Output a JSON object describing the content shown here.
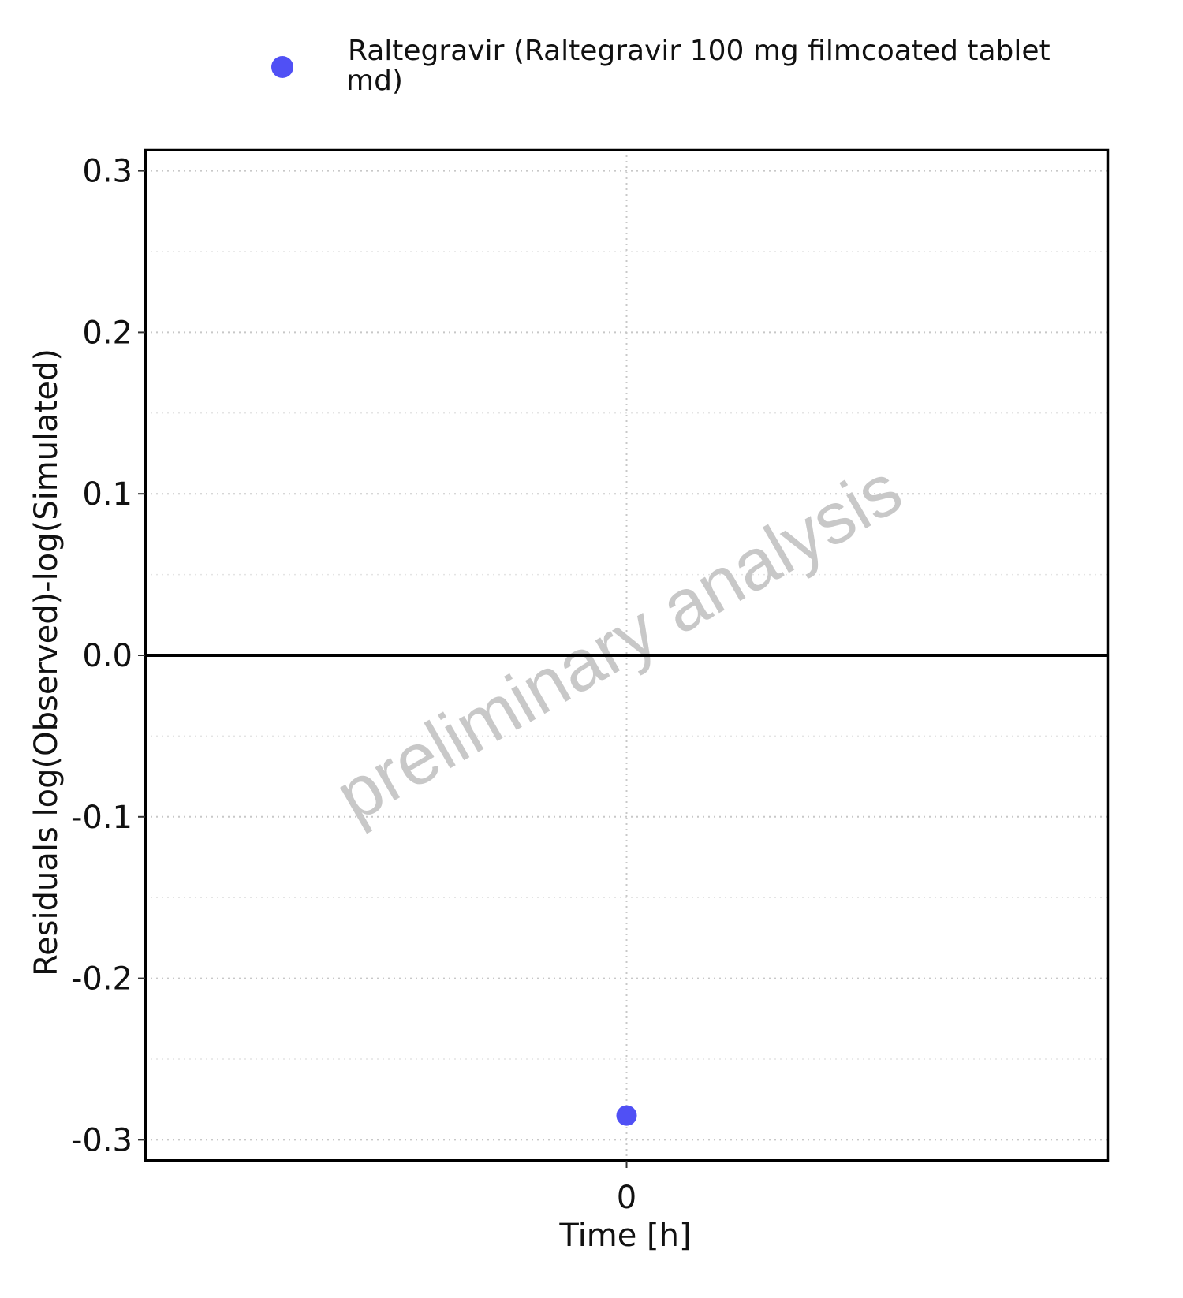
{
  "chart_data": {
    "type": "scatter",
    "xlabel": "Time [h]",
    "ylabel": "Residuals log(Observed)-log(Simulated)",
    "x_ticks": [
      0
    ],
    "x_tick_labels": [
      "0"
    ],
    "y_ticks": [
      0.3,
      0.2,
      0.1,
      0.0,
      -0.1,
      -0.2,
      -0.3
    ],
    "y_tick_labels": [
      "0.3",
      "0.2",
      "0.1",
      "0.0",
      "-0.1",
      "-0.2",
      "-0.3"
    ],
    "ylim": [
      -0.313,
      0.313
    ],
    "xlim": [
      -1,
      1
    ],
    "grid": true,
    "reference_line_y": 0.0,
    "legend": {
      "position": "top",
      "entries": [
        {
          "label_line1": "Raltegravir (Raltegravir 100 mg filmcoated tablet",
          "label_line2": "md)",
          "color": "#5050f5"
        }
      ]
    },
    "series": [
      {
        "name": "Raltegravir (Raltegravir 100 mg filmcoated tablet md)",
        "color": "#5050f5",
        "points": [
          {
            "x": 0,
            "y": -0.285
          }
        ]
      }
    ],
    "watermark": "preliminary analysis"
  }
}
